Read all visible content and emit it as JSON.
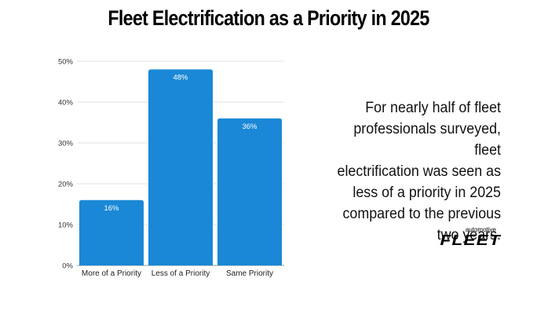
{
  "chart_data": {
    "type": "bar",
    "title": "Fleet Electrification as a Priority in 2025",
    "categories": [
      "More of a Priority",
      "Less of a Priority",
      "Same Priority"
    ],
    "values": [
      16,
      48,
      36
    ],
    "data_labels": [
      "16%",
      "48%",
      "36%"
    ],
    "ylim": [
      0,
      50
    ],
    "yticks": [
      0,
      10,
      20,
      30,
      40,
      50
    ],
    "ytick_labels": [
      "0%",
      "10%",
      "20%",
      "30%",
      "40%",
      "50%"
    ],
    "xlabel": "",
    "ylabel": "",
    "grid": true,
    "bar_color": "#1a88d6",
    "data_label_color": "#ffffff"
  },
  "annotation": {
    "text": "For nearly half of fleet\nprofessionals surveyed, fleet\nelectrification was seen as\nless of a priority in 2025\ncompared to the previous \ntwo years."
  },
  "logo": {
    "small": "automotive",
    "big": "FLEET"
  }
}
